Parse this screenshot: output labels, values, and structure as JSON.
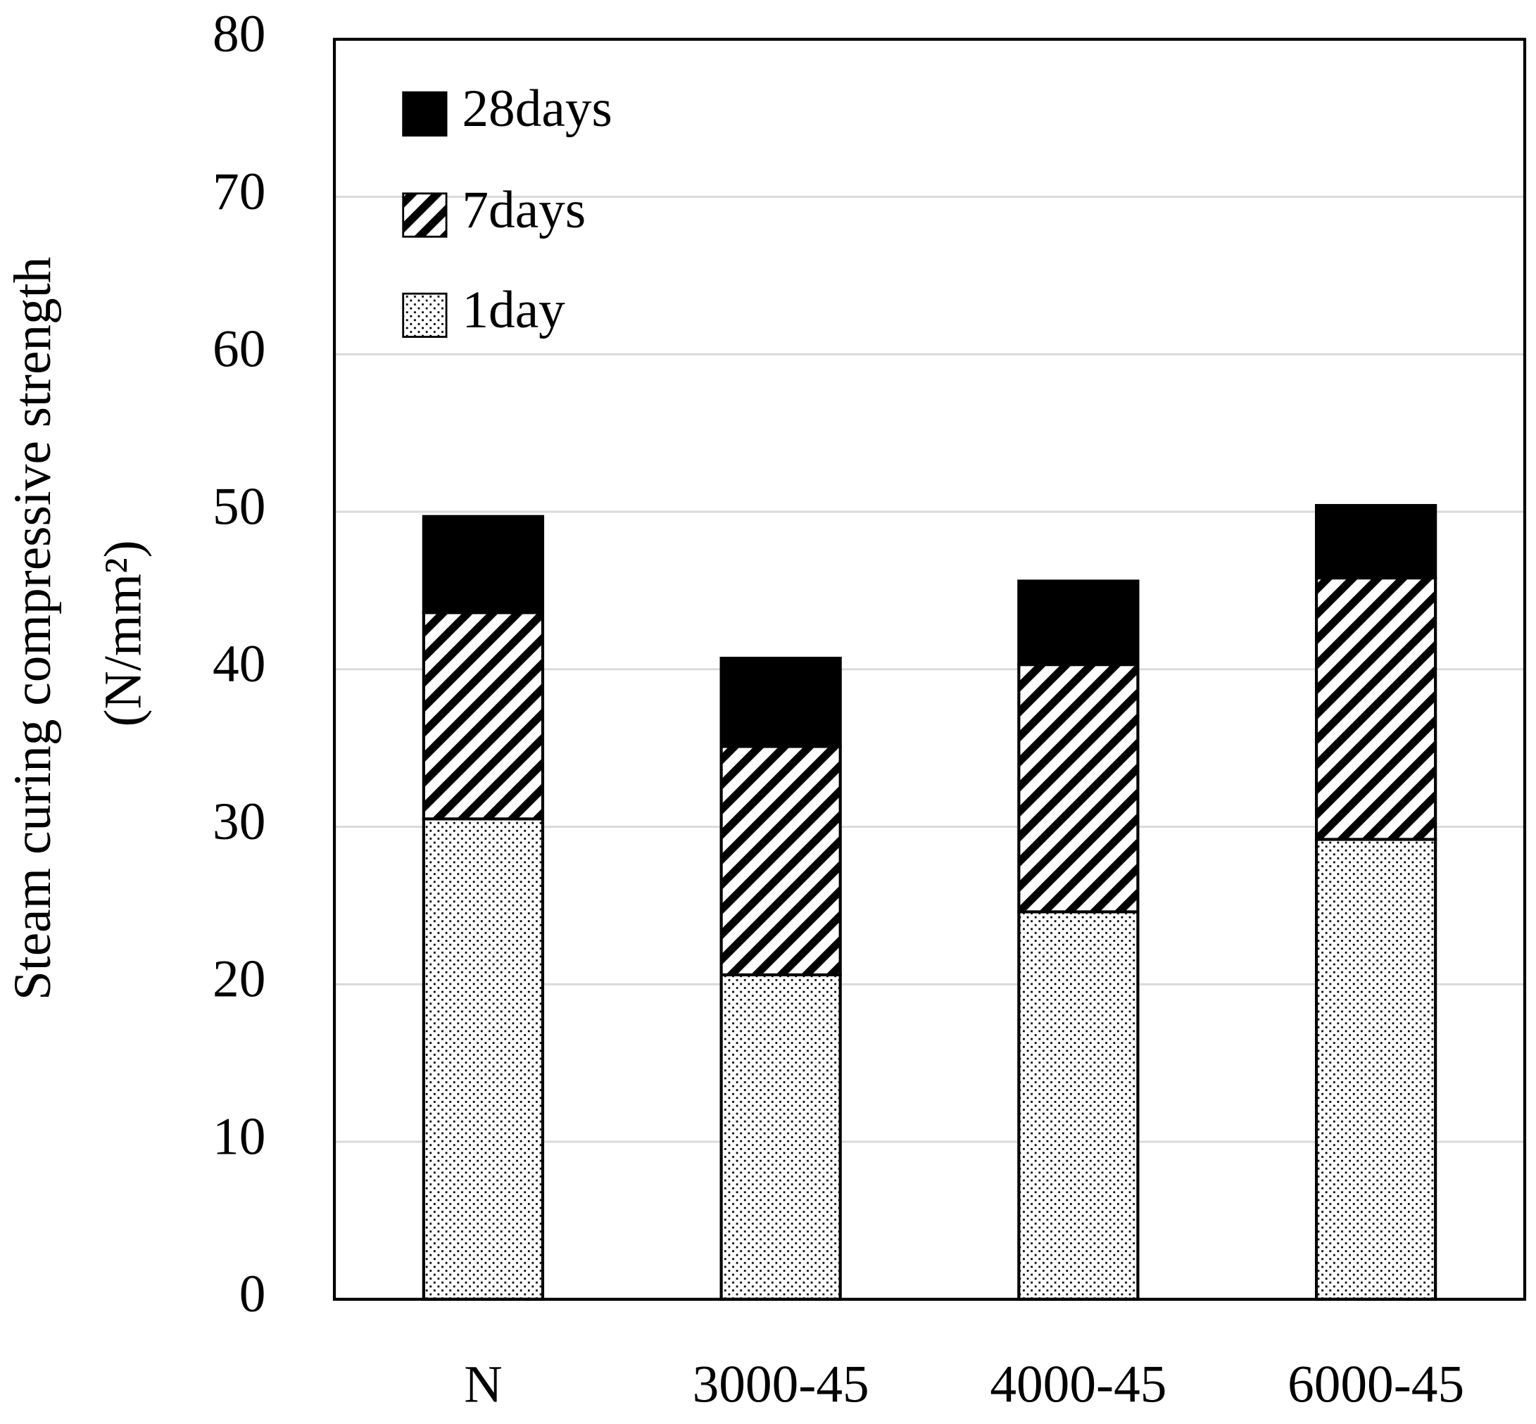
{
  "chart_data": {
    "type": "stacked-bar",
    "y_label": [
      "Steam curing compressive strength",
      "(N/mm²)"
    ],
    "categories": [
      "N",
      "3000-45",
      "4000-45",
      "6000-45"
    ],
    "series": [
      {
        "name": "1day",
        "color": "#000000",
        "pattern": "dots",
        "values": [
          30.5,
          20.6,
          24.6,
          29.2
        ]
      },
      {
        "name": "7days",
        "color": "#000000",
        "pattern": "stripes",
        "values": [
          13.1,
          14.5,
          15.7,
          16.6
        ]
      },
      {
        "name": "28days",
        "color": "#000000",
        "pattern": "solid",
        "values": [
          6.1,
          5.6,
          5.3,
          4.6
        ]
      }
    ],
    "ylim": [
      0,
      80
    ],
    "yticks": [
      0,
      10,
      20,
      30,
      40,
      50,
      60,
      70,
      80
    ],
    "grid": true,
    "legend": "upper-left"
  }
}
